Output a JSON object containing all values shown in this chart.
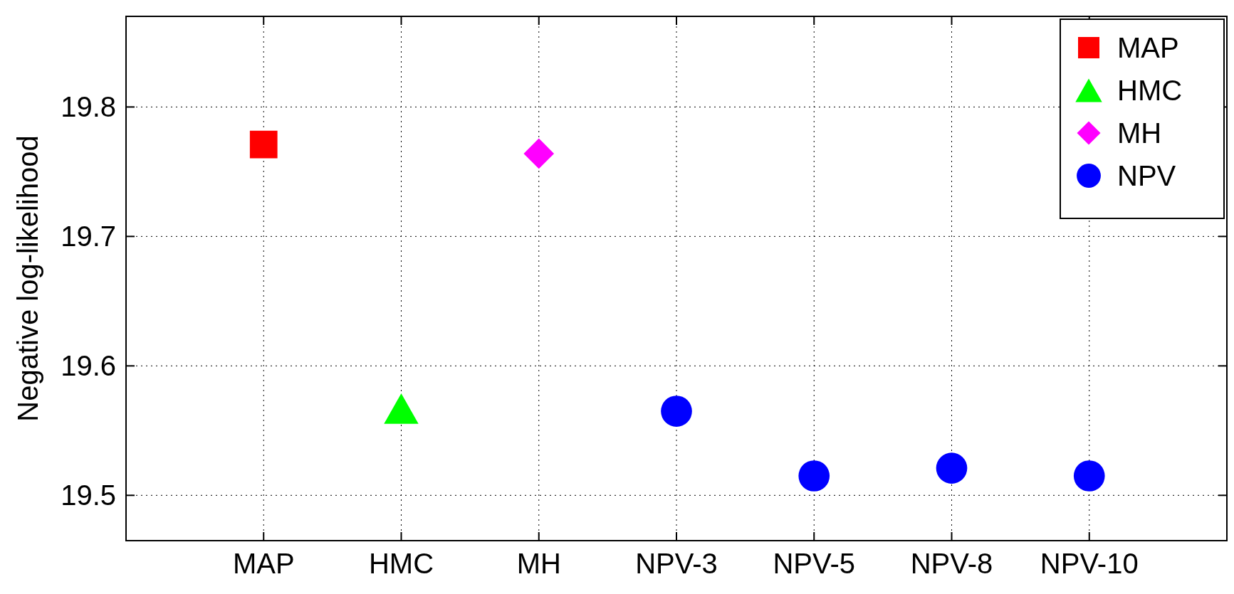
{
  "chart_data": {
    "type": "scatter",
    "ylabel": "Negative log-likelihood",
    "categories": [
      "MAP",
      "HMC",
      "MH",
      "NPV-3",
      "NPV-5",
      "NPV-8",
      "NPV-10"
    ],
    "ylim": [
      19.465,
      19.87
    ],
    "yticks": [
      19.5,
      19.6,
      19.7,
      19.8
    ],
    "grid": true,
    "legend": "top right",
    "series": [
      {
        "name": "MAP",
        "color": "#ff0000",
        "marker": "square",
        "x": [
          "MAP"
        ],
        "values": [
          19.771
        ]
      },
      {
        "name": "HMC",
        "color": "#00ff00",
        "marker": "triangle",
        "x": [
          "HMC"
        ],
        "values": [
          19.567
        ]
      },
      {
        "name": "MH",
        "color": "#ff00ff",
        "marker": "diamond",
        "x": [
          "MH"
        ],
        "values": [
          19.764
        ]
      },
      {
        "name": "NPV",
        "color": "#0000ff",
        "marker": "circle",
        "x": [
          "NPV-3",
          "NPV-5",
          "NPV-8",
          "NPV-10"
        ],
        "values": [
          19.565,
          19.515,
          19.521,
          19.515
        ]
      }
    ]
  }
}
